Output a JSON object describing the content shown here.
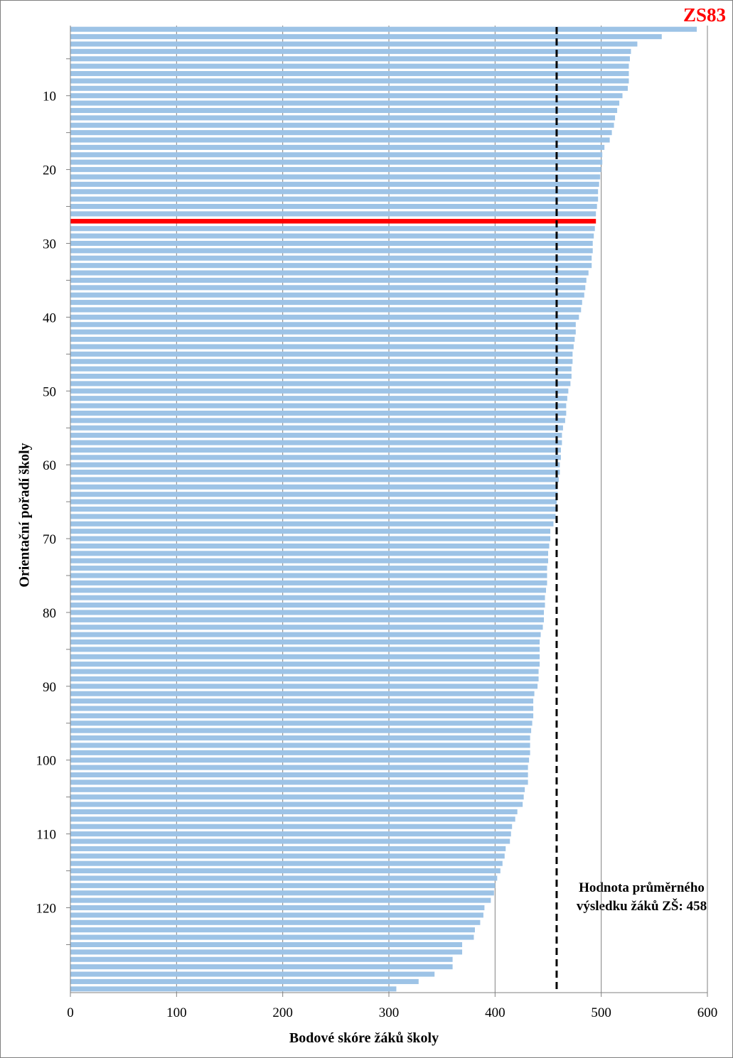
{
  "chart_data": {
    "type": "bar",
    "orientation": "horizontal",
    "highlight_label": "ZS83",
    "highlight_color": "#ff0000",
    "bar_color": "#9dc3e6",
    "highlight_rank": 27,
    "xlabel": "Bodové skóre žáků školy",
    "ylabel": "Orientační pořadí školy",
    "xlim": [
      0,
      600
    ],
    "x_ticks": [
      "0",
      "100",
      "200",
      "300",
      "400",
      "500",
      "600"
    ],
    "y_ticks": [
      "10",
      "20",
      "30",
      "40",
      "50",
      "60",
      "70",
      "80",
      "90",
      "100",
      "110",
      "120"
    ],
    "y_range": [
      1,
      129
    ],
    "grid": "vertical",
    "reference_line": {
      "value": 458,
      "style": "dashed",
      "label_line1": "Hodnota průměrného",
      "label_line2": "výsledku žáků ZŠ: 458"
    },
    "values": [
      590,
      557,
      534,
      528,
      527,
      526,
      526,
      526,
      525,
      520,
      517,
      515,
      513,
      512,
      510,
      508,
      503,
      501,
      501,
      500,
      499,
      498,
      497,
      497,
      496,
      495,
      495,
      494,
      493,
      492,
      492,
      491,
      491,
      488,
      486,
      485,
      484,
      482,
      481,
      479,
      476,
      476,
      475,
      474,
      473,
      473,
      472,
      472,
      471,
      469,
      468,
      467,
      467,
      466,
      464,
      463,
      463,
      462,
      462,
      461,
      461,
      460,
      459,
      459,
      458,
      458,
      457,
      455,
      452,
      452,
      451,
      450,
      450,
      449,
      449,
      449,
      448,
      447,
      447,
      446,
      446,
      445,
      443,
      442,
      442,
      442,
      442,
      441,
      441,
      440,
      437,
      436,
      436,
      436,
      435,
      434,
      433,
      433,
      433,
      432,
      431,
      431,
      431,
      428,
      427,
      426,
      421,
      419,
      416,
      415,
      414,
      410,
      409,
      407,
      405,
      402,
      400,
      399,
      396,
      390,
      389,
      386,
      381,
      380,
      369,
      369,
      360,
      360,
      343,
      328,
      307
    ]
  }
}
